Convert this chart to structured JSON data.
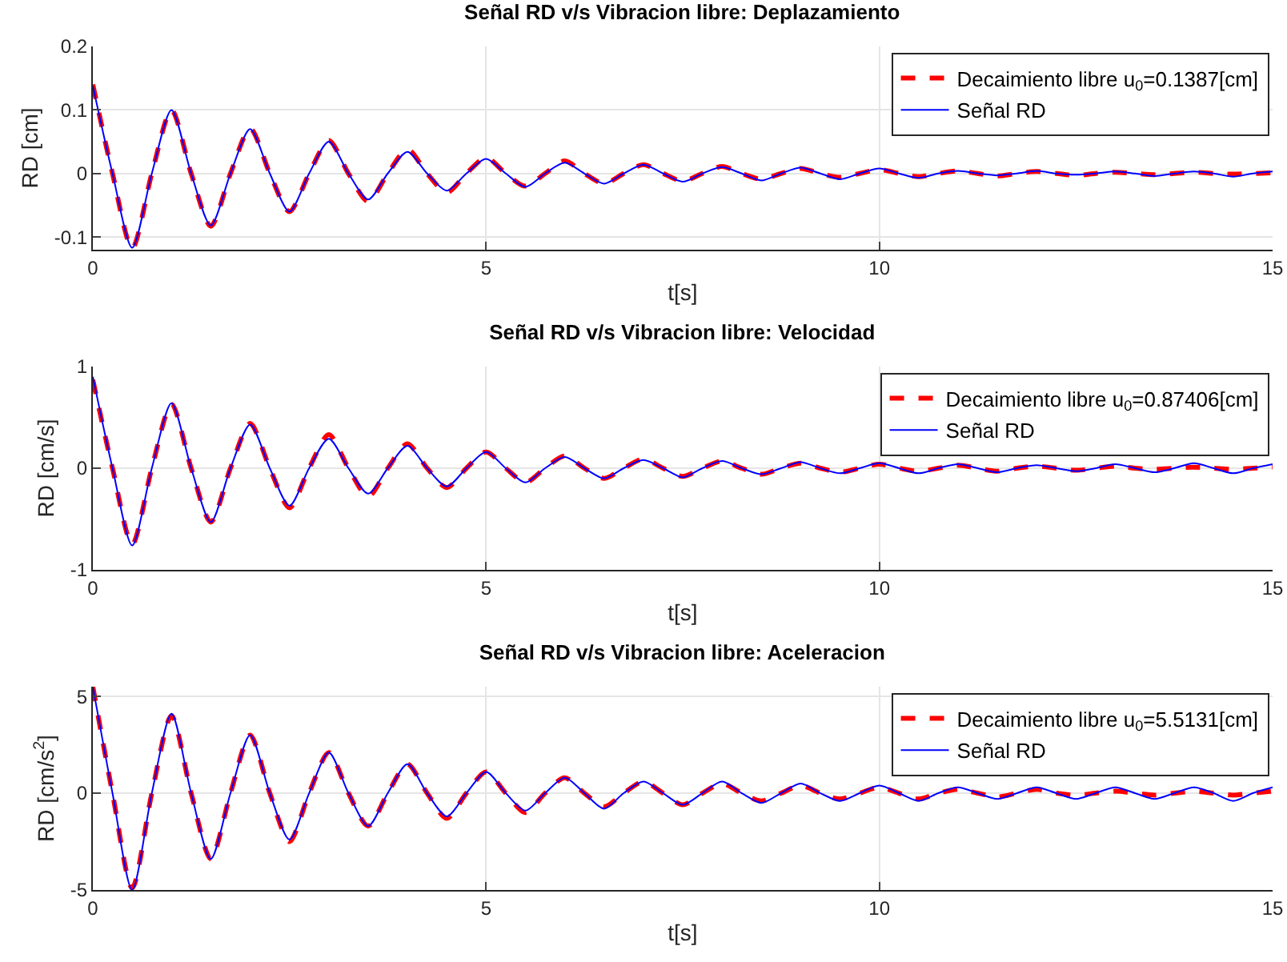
{
  "chart_data": [
    {
      "type": "line",
      "title": "Señal RD v/s Vibracion libre: Deplazamiento",
      "xlabel": "t[s]",
      "ylabel": "RD [cm]",
      "xlim": [
        0,
        15
      ],
      "xticks": [
        0,
        5,
        10,
        15
      ],
      "ylim": [
        -0.12,
        0.2
      ],
      "yticks": [
        -0.1,
        0,
        0.1,
        0.2
      ],
      "grid": true,
      "legend": "top right",
      "x": [
        0,
        0.25,
        0.5,
        0.75,
        1,
        1.25,
        1.5,
        1.75,
        2,
        2.25,
        2.5,
        2.75,
        3,
        3.25,
        3.5,
        3.75,
        4,
        4.25,
        4.5,
        4.75,
        5,
        5.25,
        5.5,
        5.75,
        6,
        6.25,
        6.5,
        6.75,
        7,
        7.25,
        7.5,
        7.75,
        8,
        8.25,
        8.5,
        8.75,
        9,
        9.25,
        9.5,
        9.75,
        10,
        10.25,
        10.5,
        10.75,
        11,
        11.25,
        11.5,
        11.75,
        12,
        12.25,
        12.5,
        12.75,
        13,
        13.25,
        13.5,
        13.75,
        14,
        14.25,
        14.5,
        14.75,
        15
      ],
      "series": [
        {
          "name": "Decaimiento libre u$_{0}$=0.1387[cm]",
          "color": "#ff0000",
          "line_style": "dashed",
          "values": [
            0.14,
            0,
            -0.118,
            0,
            0.1,
            0,
            -0.083,
            0,
            0.071,
            0,
            -0.06,
            0,
            0.052,
            0,
            -0.044,
            0,
            0.038,
            0,
            -0.03,
            0,
            0.025,
            0,
            -0.02,
            0,
            0.02,
            0,
            -0.016,
            0,
            0.014,
            0,
            -0.012,
            0,
            0.011,
            0,
            -0.009,
            0,
            0.008,
            0,
            -0.006,
            0,
            0.006,
            0,
            -0.005,
            0,
            0.004,
            0,
            -0.004,
            0,
            0.003,
            0,
            -0.003,
            0,
            0.002,
            0,
            -0.002,
            0,
            0.002,
            0,
            -0.001,
            0,
            0.001
          ]
        },
        {
          "name": "Señal RD",
          "color": "#0000ff",
          "line_style": "solid",
          "values": [
            0.138,
            0,
            -0.117,
            0,
            0.1,
            0,
            -0.082,
            0,
            0.07,
            0,
            -0.06,
            0,
            0.05,
            0,
            -0.041,
            0,
            0.034,
            0,
            -0.027,
            0,
            0.023,
            0,
            -0.021,
            0,
            0.017,
            0,
            -0.016,
            0,
            0.014,
            0,
            -0.013,
            0,
            0.01,
            0,
            -0.011,
            0,
            0.009,
            0,
            -0.009,
            0,
            0.008,
            0,
            -0.007,
            0,
            0.004,
            0,
            -0.003,
            0,
            0.004,
            0,
            -0.002,
            0,
            0.003,
            0,
            -0.004,
            0,
            0.003,
            0,
            -0.005,
            0,
            0.003
          ]
        }
      ]
    },
    {
      "type": "line",
      "title": "Señal RD v/s Vibracion libre: Velocidad",
      "xlabel": "t[s]",
      "ylabel": "RD [cm/s]",
      "xlim": [
        0,
        15
      ],
      "xticks": [
        0,
        5,
        10,
        15
      ],
      "ylim": [
        -1,
        1
      ],
      "yticks": [
        -1,
        0,
        1
      ],
      "grid": true,
      "legend": "top right",
      "x": [
        0,
        0.25,
        0.5,
        0.75,
        1,
        1.25,
        1.5,
        1.75,
        2,
        2.25,
        2.5,
        2.75,
        3,
        3.25,
        3.5,
        3.75,
        4,
        4.25,
        4.5,
        4.75,
        5,
        5.25,
        5.5,
        5.75,
        6,
        6.25,
        6.5,
        6.75,
        7,
        7.25,
        7.5,
        7.75,
        8,
        8.25,
        8.5,
        8.75,
        9,
        9.25,
        9.5,
        9.75,
        10,
        10.25,
        10.5,
        10.75,
        11,
        11.25,
        11.5,
        11.75,
        12,
        12.25,
        12.5,
        12.75,
        13,
        13.25,
        13.5,
        13.75,
        14,
        14.25,
        14.5,
        14.75,
        15
      ],
      "series": [
        {
          "name": "Decaimiento libre u$_{0}$=0.87406[cm]",
          "color": "#ff0000",
          "line_style": "dashed",
          "values": [
            0.87,
            0,
            -0.75,
            0,
            0.63,
            0,
            -0.53,
            0,
            0.44,
            0,
            -0.39,
            0,
            0.33,
            0,
            -0.28,
            0,
            0.24,
            0,
            -0.19,
            0,
            0.16,
            0,
            -0.14,
            0,
            0.12,
            0,
            -0.1,
            0,
            0.09,
            0,
            -0.08,
            0,
            0.07,
            0,
            -0.06,
            0,
            0.05,
            0,
            -0.04,
            0,
            0.04,
            0,
            -0.03,
            0,
            0.03,
            0,
            -0.03,
            0,
            0.02,
            0,
            -0.02,
            0,
            0.02,
            0,
            -0.01,
            0,
            0.01,
            0,
            -0.01,
            0,
            0.01
          ]
        },
        {
          "name": "Señal RD",
          "color": "#0000ff",
          "line_style": "solid",
          "values": [
            0.9,
            0,
            -0.76,
            0,
            0.64,
            0,
            -0.53,
            0,
            0.43,
            0,
            -0.37,
            0,
            0.29,
            0,
            -0.25,
            0,
            0.22,
            0,
            -0.18,
            0,
            0.16,
            0,
            -0.14,
            0,
            0.11,
            0,
            -0.1,
            0,
            0.08,
            0,
            -0.09,
            0,
            0.07,
            0,
            -0.06,
            0,
            0.06,
            0,
            -0.05,
            0,
            0.05,
            0,
            -0.05,
            0,
            0.04,
            0,
            -0.04,
            0,
            0.03,
            0,
            -0.03,
            0,
            0.04,
            0,
            -0.04,
            0,
            0.05,
            0,
            -0.05,
            0,
            0.04
          ]
        }
      ]
    },
    {
      "type": "line",
      "title": "Señal RD v/s Vibracion libre: Aceleracion",
      "xlabel": "t[s]",
      "ylabel": "RD [cm/s$^{2}$]",
      "xlim": [
        0,
        15
      ],
      "xticks": [
        0,
        5,
        10,
        15
      ],
      "ylim": [
        -5,
        5.5
      ],
      "yticks": [
        -5,
        0,
        5
      ],
      "grid": true,
      "legend": "top right",
      "x": [
        0,
        0.25,
        0.5,
        0.75,
        1,
        1.25,
        1.5,
        1.75,
        2,
        2.25,
        2.5,
        2.75,
        3,
        3.25,
        3.5,
        3.75,
        4,
        4.25,
        4.5,
        4.75,
        5,
        5.25,
        5.5,
        5.75,
        6,
        6.25,
        6.5,
        6.75,
        7,
        7.25,
        7.5,
        7.75,
        8,
        8.25,
        8.5,
        8.75,
        9,
        9.25,
        9.5,
        9.75,
        10,
        10.25,
        10.5,
        10.75,
        11,
        11.25,
        11.5,
        11.75,
        12,
        12.25,
        12.5,
        12.75,
        13,
        13.25,
        13.5,
        13.75,
        14,
        14.25,
        14.5,
        14.75,
        15
      ],
      "series": [
        {
          "name": "Decaimiento libre u$_{0}$=5.5131[cm]",
          "color": "#ff0000",
          "line_style": "dashed",
          "values": [
            5.5,
            0,
            -4.9,
            0,
            4,
            0,
            -3.4,
            0,
            3,
            0,
            -2.5,
            0,
            2.1,
            0,
            -1.7,
            0,
            1.5,
            0,
            -1.3,
            0,
            1.1,
            0,
            -1,
            0,
            0.8,
            0,
            -0.7,
            0,
            0.6,
            0,
            -0.6,
            0,
            0.5,
            0,
            -0.4,
            0,
            0.4,
            0,
            -0.3,
            0,
            0.3,
            0,
            -0.3,
            0,
            0.2,
            0,
            -0.2,
            0,
            0.2,
            0,
            -0.1,
            0,
            0.1,
            0,
            -0.1,
            0,
            0.1,
            0,
            -0.1,
            0,
            0.1
          ]
        },
        {
          "name": "Señal RD",
          "color": "#0000ff",
          "line_style": "solid",
          "values": [
            5.5,
            0,
            -5,
            0,
            4.1,
            0,
            -3.4,
            0,
            3,
            0,
            -2.4,
            0,
            2.1,
            0,
            -1.7,
            0,
            1.5,
            0,
            -1.2,
            0,
            1.1,
            0,
            -0.9,
            0,
            0.8,
            0,
            -0.8,
            0,
            0.6,
            0,
            -0.6,
            0,
            0.6,
            0,
            -0.5,
            0,
            0.5,
            0,
            -0.4,
            0,
            0.4,
            0,
            -0.4,
            0,
            0.3,
            0,
            -0.3,
            0,
            0.3,
            0,
            -0.3,
            0,
            0.3,
            0,
            -0.3,
            0,
            0.3,
            0,
            -0.4,
            0,
            0.3
          ]
        }
      ]
    }
  ]
}
